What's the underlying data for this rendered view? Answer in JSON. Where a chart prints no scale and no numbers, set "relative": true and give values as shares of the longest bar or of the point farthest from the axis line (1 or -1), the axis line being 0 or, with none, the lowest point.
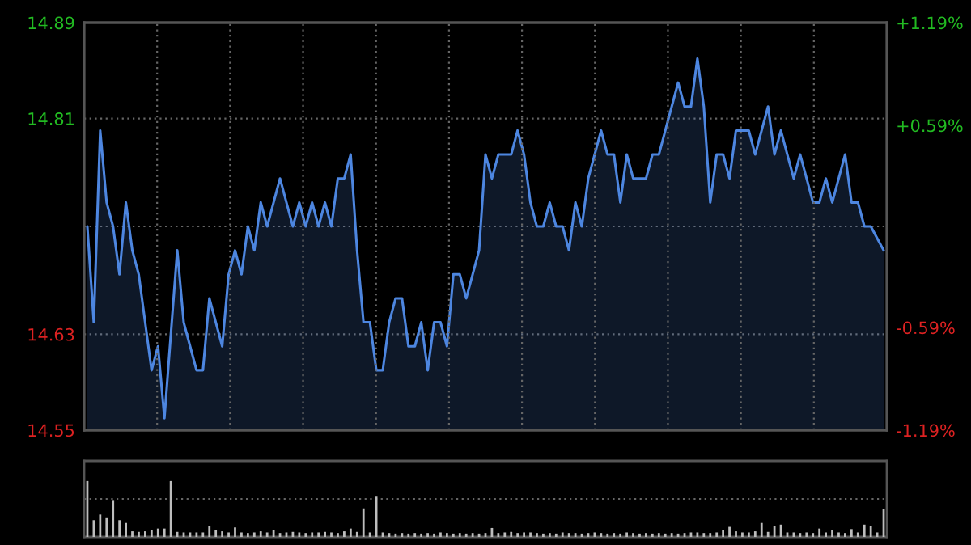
{
  "chart_data": [
    {
      "type": "area",
      "categories": [
        null,
        null,
        null,
        null,
        null,
        null,
        null,
        null,
        null,
        null,
        null,
        null,
        null,
        null,
        null,
        null,
        null,
        null,
        null,
        null,
        null,
        null,
        null,
        null,
        null,
        null,
        null,
        null,
        null,
        null,
        null,
        null,
        null,
        null,
        null,
        null,
        null,
        null,
        null,
        null,
        null,
        null,
        null,
        null,
        null,
        null,
        null,
        null,
        null,
        null,
        null,
        null,
        null,
        null,
        null,
        null,
        null,
        null,
        null,
        null,
        null,
        null,
        null,
        null,
        null,
        null,
        null,
        null,
        null,
        null,
        null,
        null,
        null,
        null,
        null,
        null,
        null,
        null,
        null,
        null,
        null,
        null,
        null,
        null,
        null,
        null,
        null,
        null,
        null,
        null,
        null,
        null,
        null,
        null,
        null,
        null,
        null,
        null,
        null,
        null,
        null,
        null,
        null,
        null,
        null,
        null,
        null,
        null,
        null,
        null,
        null,
        null,
        null,
        null,
        null,
        null,
        null,
        null,
        null,
        null,
        null,
        null,
        null,
        null,
        null
      ],
      "series": [
        {
          "color": "#4d86e0",
          "values": [
            14.72,
            14.64,
            14.8,
            14.74,
            14.72,
            14.68,
            14.74,
            14.7,
            14.68,
            14.64,
            14.6,
            14.62,
            14.56,
            14.63,
            14.7,
            14.64,
            14.62,
            14.6,
            14.6,
            14.66,
            14.64,
            14.62,
            14.68,
            14.7,
            14.68,
            14.72,
            14.7,
            14.74,
            14.72,
            14.74,
            14.76,
            14.74,
            14.72,
            14.74,
            14.72,
            14.74,
            14.72,
            14.74,
            14.72,
            14.76,
            14.76,
            14.78,
            14.7,
            14.64,
            14.64,
            14.6,
            14.6,
            14.64,
            14.66,
            14.66,
            14.62,
            14.62,
            14.64,
            14.6,
            14.64,
            14.64,
            14.62,
            14.68,
            14.68,
            14.66,
            14.68,
            14.7,
            14.78,
            14.76,
            14.78,
            14.78,
            14.78,
            14.8,
            14.78,
            14.74,
            14.72,
            14.72,
            14.74,
            14.72,
            14.72,
            14.7,
            14.74,
            14.72,
            14.76,
            14.78,
            14.8,
            14.78,
            14.78,
            14.74,
            14.78,
            14.76,
            14.76,
            14.76,
            14.78,
            14.78,
            14.8,
            14.82,
            14.84,
            14.82,
            14.82,
            14.86,
            14.82,
            14.74,
            14.78,
            14.78,
            14.76,
            14.8,
            14.8,
            14.8,
            14.78,
            14.8,
            14.82,
            14.78,
            14.8,
            14.78,
            14.76,
            14.78,
            14.76,
            14.74,
            14.74,
            14.76,
            14.74,
            14.76,
            14.78,
            14.74,
            14.74,
            14.72,
            14.72,
            14.71,
            14.7
          ]
        }
      ],
      "ylim": [
        14.55,
        14.89
      ],
      "yticks": [
        14.55,
        14.63,
        {
          "value": 14.72,
          "label": null
        },
        14.81,
        14.89
      ],
      "y2lim": [
        -1.19,
        1.19
      ],
      "y2ticks": [
        {
          "value": -1.19,
          "label": "-1.19%"
        },
        {
          "value": -0.59,
          "label": "-0.59%"
        },
        {
          "value": 0,
          "label": null
        },
        {
          "value": 0.59,
          "label": "+0.59%"
        },
        {
          "value": 1.19,
          "label": "+1.19%"
        }
      ],
      "grid": true,
      "legend": false
    },
    {
      "type": "bar",
      "relative": true,
      "color": "#bdbdbd",
      "legend": false,
      "ref_lines": [
        {
          "axis": "y",
          "value": 0.68,
          "color": "#666666",
          "line_style": "dotted"
        }
      ],
      "categories": [
        null,
        null,
        null,
        null,
        null,
        null,
        null,
        null,
        null,
        null,
        null,
        null,
        null,
        null,
        null,
        null,
        null,
        null,
        null,
        null,
        null,
        null,
        null,
        null,
        null,
        null,
        null,
        null,
        null,
        null,
        null,
        null,
        null,
        null,
        null,
        null,
        null,
        null,
        null,
        null,
        null,
        null,
        null,
        null,
        null,
        null,
        null,
        null,
        null,
        null,
        null,
        null,
        null,
        null,
        null,
        null,
        null,
        null,
        null,
        null,
        null,
        null,
        null,
        null,
        null,
        null,
        null,
        null,
        null,
        null,
        null,
        null,
        null,
        null,
        null,
        null,
        null,
        null,
        null,
        null,
        null,
        null,
        null,
        null,
        null,
        null,
        null,
        null,
        null,
        null,
        null,
        null,
        null,
        null,
        null,
        null,
        null,
        null,
        null,
        null,
        null,
        null,
        null,
        null,
        null,
        null,
        null,
        null,
        null,
        null,
        null,
        null,
        null,
        null,
        null,
        null,
        null,
        null,
        null,
        null,
        null,
        null,
        null,
        null,
        null
      ],
      "values": [
        1.0,
        0.3,
        0.4,
        0.35,
        0.66,
        0.3,
        0.25,
        0.1,
        0.09,
        0.1,
        0.12,
        0.15,
        0.15,
        1.0,
        0.09,
        0.08,
        0.08,
        0.08,
        0.08,
        0.2,
        0.12,
        0.1,
        0.08,
        0.17,
        0.08,
        0.07,
        0.08,
        0.1,
        0.08,
        0.12,
        0.07,
        0.08,
        0.09,
        0.08,
        0.07,
        0.08,
        0.08,
        0.09,
        0.08,
        0.07,
        0.1,
        0.15,
        0.09,
        0.51,
        0.08,
        0.72,
        0.08,
        0.07,
        0.06,
        0.07,
        0.06,
        0.07,
        0.06,
        0.07,
        0.06,
        0.08,
        0.07,
        0.06,
        0.07,
        0.06,
        0.07,
        0.06,
        0.07,
        0.16,
        0.07,
        0.08,
        0.09,
        0.07,
        0.08,
        0.08,
        0.07,
        0.06,
        0.07,
        0.06,
        0.08,
        0.07,
        0.07,
        0.06,
        0.07,
        0.08,
        0.07,
        0.06,
        0.07,
        0.06,
        0.08,
        0.07,
        0.06,
        0.07,
        0.06,
        0.07,
        0.06,
        0.07,
        0.06,
        0.07,
        0.08,
        0.08,
        0.07,
        0.07,
        0.08,
        0.12,
        0.18,
        0.1,
        0.08,
        0.08,
        0.1,
        0.25,
        0.09,
        0.2,
        0.22,
        0.08,
        0.08,
        0.07,
        0.08,
        0.07,
        0.15,
        0.08,
        0.12,
        0.08,
        0.07,
        0.14,
        0.08,
        0.22,
        0.2,
        0.08,
        0.5
      ]
    }
  ]
}
